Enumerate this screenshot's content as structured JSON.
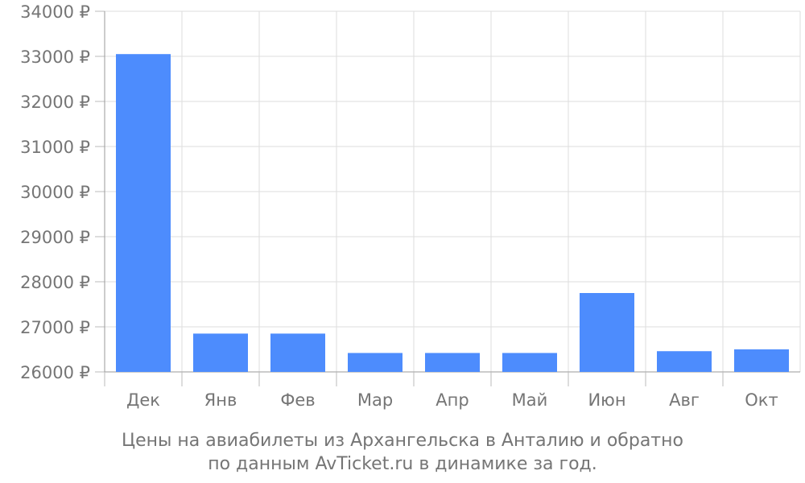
{
  "chart_data": {
    "type": "bar",
    "categories": [
      "Дек",
      "Янв",
      "Фев",
      "Мар",
      "Апр",
      "Май",
      "Июн",
      "Авг",
      "Окт"
    ],
    "values": [
      33050,
      26850,
      26850,
      26420,
      26420,
      26420,
      27750,
      26460,
      26500
    ],
    "y_tick_labels": [
      "26000 ₽",
      "27000 ₽",
      "28000 ₽",
      "29000 ₽",
      "30000 ₽",
      "31000 ₽",
      "32000 ₽",
      "33000 ₽",
      "34000 ₽"
    ],
    "ylim": [
      26000,
      34000
    ],
    "bar_color": "#4d8cfd",
    "grid": true,
    "title": "Цены на авиабилеты из Архангельска в Анталию и обратно",
    "subtitle": "по данным AvTicket.ru в динамике за год."
  }
}
